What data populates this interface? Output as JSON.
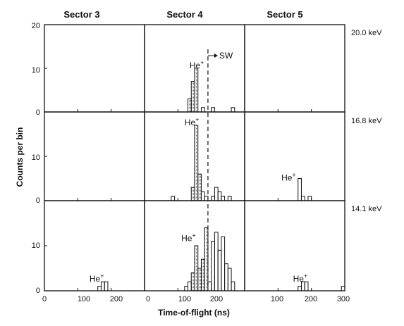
{
  "chart_data": {
    "type": "histogram-grid",
    "column_titles": [
      "Sector 3",
      "Sector 4",
      "Sector 5"
    ],
    "row_labels": [
      "20.0 keV",
      "16.8 keV",
      "14.1 keV"
    ],
    "xlabel": "Time-of-flight (ns)",
    "ylabel": "Counts per bin",
    "xlim": [
      0,
      300
    ],
    "ylim": [
      0,
      20
    ],
    "x_ticks": [
      "0",
      "100",
      "200",
      "300"
    ],
    "y_ticks": [
      "0",
      "10",
      "20"
    ],
    "bin_width_ns": 10,
    "shading": "dotted fill under main He+ peak",
    "sw_marker": {
      "label": "SW",
      "x": 190,
      "arrow_direction": "right"
    },
    "peak_label": "He+",
    "panels": [
      {
        "row": 0,
        "col": 0,
        "bins": []
      },
      {
        "row": 0,
        "col": 1,
        "label_at": [
          135,
          10
        ],
        "bins": [
          [
            130,
            3
          ],
          [
            140,
            7
          ],
          [
            150,
            10
          ],
          [
            170,
            1
          ],
          [
            200,
            1
          ],
          [
            260,
            1
          ]
        ],
        "shaded_range": [
          130,
          160
        ]
      },
      {
        "row": 0,
        "col": 2,
        "bins": []
      },
      {
        "row": 1,
        "col": 0,
        "bins": []
      },
      {
        "row": 1,
        "col": 1,
        "label_at": [
          120,
          17
        ],
        "bins": [
          [
            80,
            1
          ],
          [
            140,
            3
          ],
          [
            150,
            17
          ],
          [
            160,
            6
          ],
          [
            170,
            2
          ],
          [
            180,
            1
          ],
          [
            200,
            1
          ],
          [
            210,
            3
          ],
          [
            220,
            2
          ],
          [
            230,
            1
          ],
          [
            250,
            1
          ]
        ],
        "shaded_range": [
          140,
          170
        ]
      },
      {
        "row": 1,
        "col": 2,
        "label_at": [
          110,
          4.5
        ],
        "bins": [
          [
            160,
            5
          ],
          [
            170,
            1
          ],
          [
            190,
            1
          ]
        ]
      },
      {
        "row": 2,
        "col": 0,
        "label_at": [
          135,
          2
        ],
        "bins": [
          [
            160,
            1
          ],
          [
            170,
            2
          ],
          [
            180,
            2
          ]
        ]
      },
      {
        "row": 2,
        "col": 1,
        "label_at": [
          110,
          11
        ],
        "bins": [
          [
            120,
            1
          ],
          [
            130,
            2
          ],
          [
            140,
            4
          ],
          [
            150,
            10
          ],
          [
            160,
            5
          ],
          [
            170,
            7
          ],
          [
            180,
            14
          ],
          [
            190,
            2
          ],
          [
            200,
            11
          ],
          [
            210,
            13
          ],
          [
            220,
            9
          ],
          [
            230,
            12
          ],
          [
            240,
            6
          ],
          [
            250,
            5
          ],
          [
            260,
            2
          ]
        ],
        "shaded_range": [
          140,
          190
        ]
      },
      {
        "row": 2,
        "col": 2,
        "label_at": [
          145,
          2
        ],
        "bins": [
          [
            160,
            1
          ],
          [
            170,
            2
          ],
          [
            180,
            2
          ],
          [
            290,
            1
          ]
        ]
      }
    ]
  }
}
